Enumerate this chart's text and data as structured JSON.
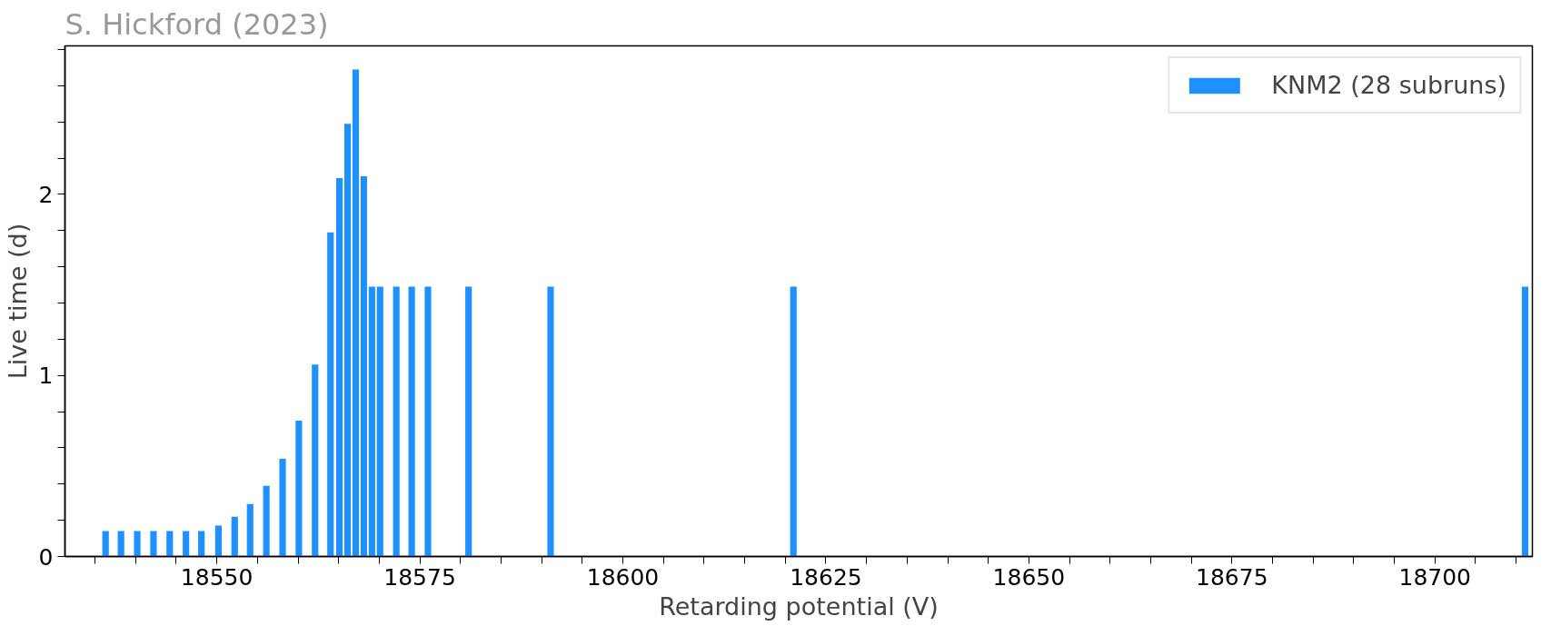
{
  "chart_data": {
    "type": "bar",
    "xlabel": "Retarding potential (V)",
    "ylabel": "Live time (d)",
    "annotations": [
      "S. Hickford (2023)"
    ],
    "x": [
      18536.3,
      18538.2,
      18540.2,
      18542.2,
      18544.2,
      18546.2,
      18548.1,
      18550.2,
      18552.2,
      18554.1,
      18556.1,
      18558.1,
      18560.1,
      18562.1,
      18564.0,
      18565.1,
      18566.1,
      18567.1,
      18568.1,
      18569.1,
      18570.1,
      18572.1,
      18574.0,
      18576.0,
      18581.0,
      18591.1,
      18621.0,
      18711.1
    ],
    "series": [
      {
        "name": "KNM2 (28 subruns)",
        "color": "#1e90ff",
        "values": [
          0.14,
          0.14,
          0.14,
          0.14,
          0.14,
          0.14,
          0.14,
          0.17,
          0.22,
          0.29,
          0.39,
          0.54,
          0.75,
          1.06,
          1.79,
          2.09,
          2.39,
          2.69,
          2.1,
          1.49,
          1.49,
          1.49,
          1.49,
          1.49,
          1.49,
          1.49,
          1.49,
          1.49
        ]
      }
    ],
    "xlim": [
      18531.3,
      18712.0
    ],
    "ylim": [
      0,
      2.82
    ],
    "xticks": [
      {
        "value": 18535,
        "label": null
      },
      {
        "value": 18540,
        "label": null
      },
      {
        "value": 18545,
        "label": null
      },
      18550,
      {
        "value": 18555,
        "label": null
      },
      {
        "value": 18560,
        "label": null
      },
      {
        "value": 18565,
        "label": null
      },
      {
        "value": 18570,
        "label": null
      },
      18575,
      {
        "value": 18580,
        "label": null
      },
      {
        "value": 18585,
        "label": null
      },
      {
        "value": 18590,
        "label": null
      },
      {
        "value": 18595,
        "label": null
      },
      18600,
      {
        "value": 18605,
        "label": null
      },
      {
        "value": 18610,
        "label": null
      },
      {
        "value": 18615,
        "label": null
      },
      {
        "value": 18620,
        "label": null
      },
      18625,
      {
        "value": 18630,
        "label": null
      },
      {
        "value": 18635,
        "label": null
      },
      {
        "value": 18640,
        "label": null
      },
      {
        "value": 18645,
        "label": null
      },
      18650,
      {
        "value": 18655,
        "label": null
      },
      {
        "value": 18660,
        "label": null
      },
      {
        "value": 18665,
        "label": null
      },
      {
        "value": 18670,
        "label": null
      },
      18675,
      {
        "value": 18680,
        "label": null
      },
      {
        "value": 18685,
        "label": null
      },
      {
        "value": 18690,
        "label": null
      },
      {
        "value": 18695,
        "label": null
      },
      18700,
      {
        "value": 18705,
        "label": null
      },
      {
        "value": 18710,
        "label": null
      }
    ],
    "yticks": [
      0,
      {
        "value": 0.2,
        "label": null
      },
      {
        "value": 0.4,
        "label": null
      },
      {
        "value": 0.6,
        "label": null
      },
      {
        "value": 0.8,
        "label": null
      },
      1,
      {
        "value": 1.2,
        "label": null
      },
      {
        "value": 1.4,
        "label": null
      },
      {
        "value": 1.6,
        "label": null
      },
      {
        "value": 1.8,
        "label": null
      },
      2,
      {
        "value": 2.2,
        "label": null
      },
      {
        "value": 2.4,
        "label": null
      },
      {
        "value": 2.6,
        "label": null
      },
      {
        "value": 2.8,
        "label": null
      }
    ],
    "grid": false,
    "legend": "top right"
  }
}
